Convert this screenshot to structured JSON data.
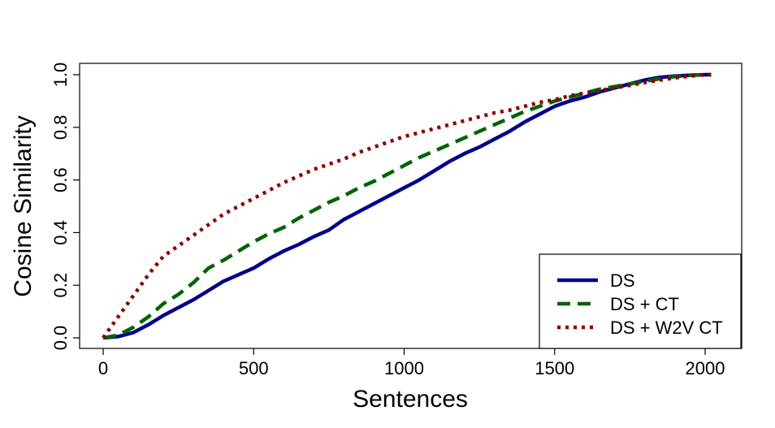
{
  "chart_data": {
    "type": "line",
    "title": "",
    "xlabel": "Sentences",
    "ylabel": "Cosine Similarity",
    "xlim": [
      0,
      2030
    ],
    "ylim": [
      0,
      1.0
    ],
    "xticks": [
      "0",
      "500",
      "1000",
      "1500",
      "2000"
    ],
    "yticks": [
      "0.0",
      "0.2",
      "0.4",
      "0.6",
      "0.8",
      "1.0"
    ],
    "grid": false,
    "legend_position": "bottom-right",
    "series": [
      {
        "name": "DS",
        "color": "#00008B",
        "style": "solid",
        "x": [
          0,
          50,
          100,
          150,
          200,
          250,
          300,
          350,
          400,
          450,
          500,
          550,
          600,
          650,
          700,
          750,
          800,
          850,
          900,
          950,
          1000,
          1050,
          1100,
          1150,
          1200,
          1250,
          1300,
          1350,
          1400,
          1450,
          1500,
          1550,
          1600,
          1650,
          1700,
          1750,
          1800,
          1850,
          1900,
          1950,
          2000,
          2020
        ],
        "y": [
          0.0,
          0.005,
          0.02,
          0.05,
          0.085,
          0.115,
          0.145,
          0.18,
          0.215,
          0.24,
          0.265,
          0.3,
          0.33,
          0.355,
          0.385,
          0.41,
          0.45,
          0.48,
          0.51,
          0.54,
          0.57,
          0.6,
          0.635,
          0.67,
          0.7,
          0.725,
          0.755,
          0.785,
          0.82,
          0.85,
          0.88,
          0.9,
          0.915,
          0.935,
          0.95,
          0.965,
          0.98,
          0.99,
          0.995,
          0.998,
          1.0,
          1.0
        ]
      },
      {
        "name": "DS + CT",
        "color": "#006400",
        "style": "dashed",
        "x": [
          0,
          50,
          100,
          150,
          200,
          250,
          300,
          350,
          400,
          450,
          500,
          550,
          600,
          650,
          700,
          750,
          800,
          850,
          900,
          950,
          1000,
          1050,
          1100,
          1150,
          1200,
          1250,
          1300,
          1350,
          1400,
          1450,
          1500,
          1550,
          1600,
          1650,
          1700,
          1750,
          1800,
          1850,
          1900,
          1950,
          2000,
          2020
        ],
        "y": [
          0.0,
          0.01,
          0.04,
          0.08,
          0.13,
          0.165,
          0.21,
          0.265,
          0.295,
          0.33,
          0.365,
          0.395,
          0.42,
          0.455,
          0.485,
          0.515,
          0.54,
          0.57,
          0.595,
          0.625,
          0.655,
          0.685,
          0.71,
          0.735,
          0.76,
          0.785,
          0.81,
          0.835,
          0.86,
          0.88,
          0.9,
          0.915,
          0.93,
          0.945,
          0.955,
          0.965,
          0.975,
          0.985,
          0.993,
          0.998,
          1.0,
          1.0
        ]
      },
      {
        "name": "DS + W2V CT",
        "color": "#8B0000",
        "style": "dotted",
        "x": [
          0,
          50,
          100,
          150,
          200,
          250,
          300,
          350,
          400,
          450,
          500,
          550,
          600,
          650,
          700,
          750,
          800,
          850,
          900,
          950,
          1000,
          1050,
          1100,
          1150,
          1200,
          1250,
          1300,
          1350,
          1400,
          1450,
          1500,
          1550,
          1600,
          1650,
          1700,
          1750,
          1800,
          1850,
          1900,
          1950,
          2000,
          2020
        ],
        "y": [
          0.0,
          0.08,
          0.16,
          0.24,
          0.31,
          0.35,
          0.39,
          0.43,
          0.47,
          0.5,
          0.53,
          0.56,
          0.59,
          0.615,
          0.64,
          0.66,
          0.68,
          0.705,
          0.725,
          0.745,
          0.765,
          0.78,
          0.795,
          0.81,
          0.825,
          0.84,
          0.855,
          0.865,
          0.88,
          0.895,
          0.905,
          0.92,
          0.93,
          0.94,
          0.95,
          0.96,
          0.97,
          0.98,
          0.988,
          0.995,
          1.0,
          1.0
        ]
      }
    ]
  }
}
